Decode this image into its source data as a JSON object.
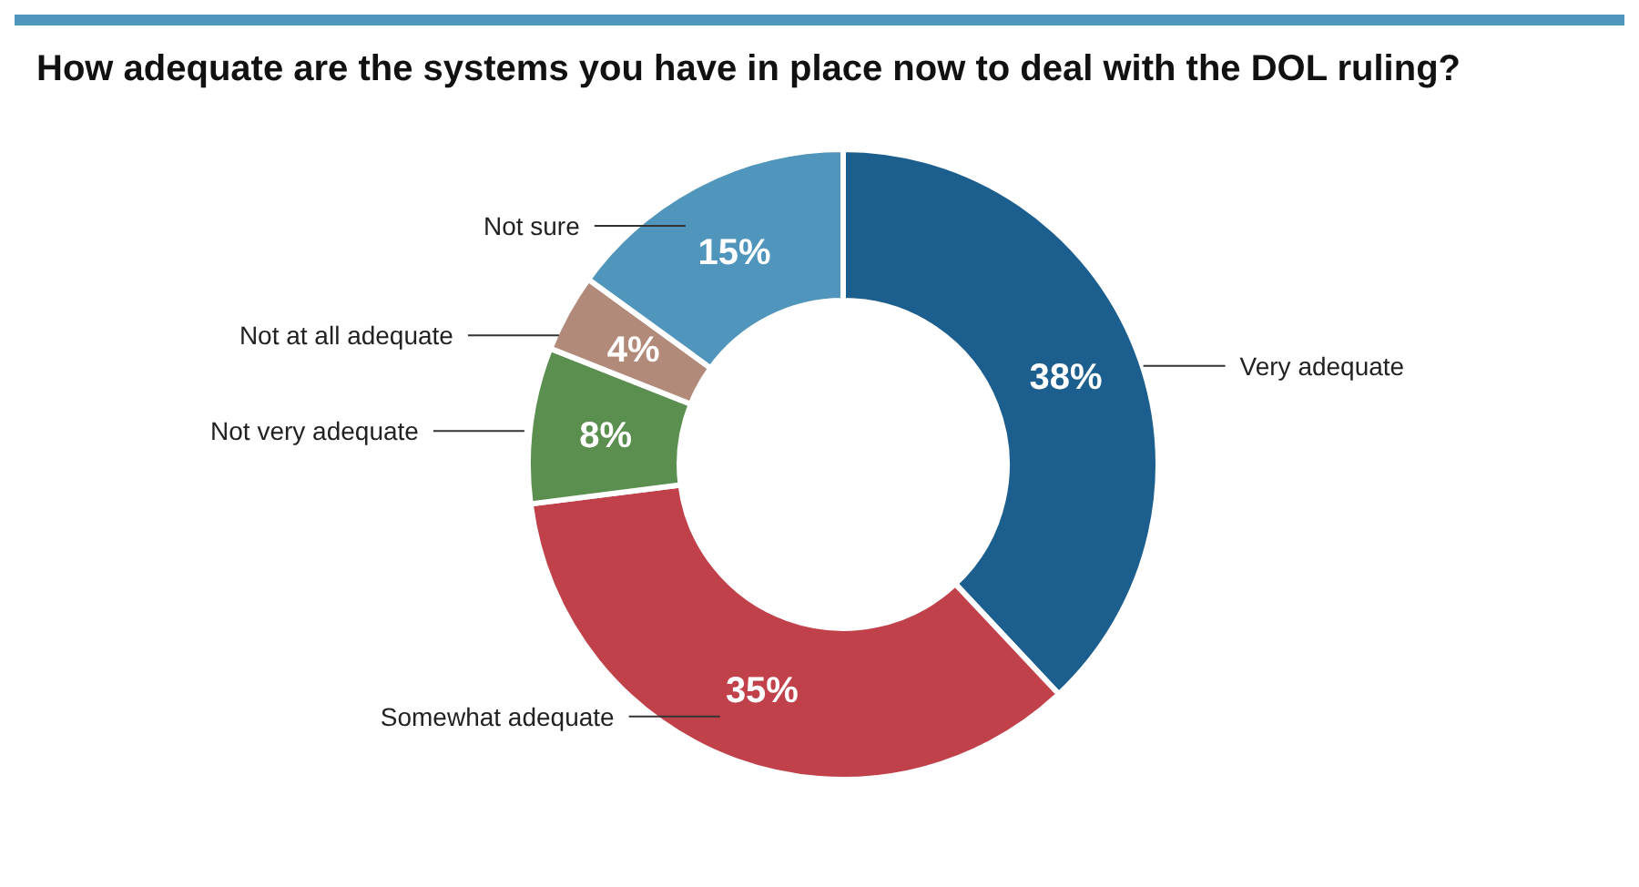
{
  "chart_data": {
    "type": "donut",
    "title": "How adequate are the systems you have in place now to deal with the DOL ruling?",
    "categories": [
      "Very adequate",
      "Somewhat adequate",
      "Not very adequate",
      "Not at all adequate",
      "Not sure"
    ],
    "values": [
      38,
      35,
      8,
      4,
      15
    ],
    "colors": [
      "#1c5f8e",
      "#c1414a",
      "#5b8f4f",
      "#b28a79",
      "#5095bb"
    ],
    "value_labels": [
      "38%",
      "35%",
      "8%",
      "4%",
      "15%"
    ],
    "legend": false
  }
}
